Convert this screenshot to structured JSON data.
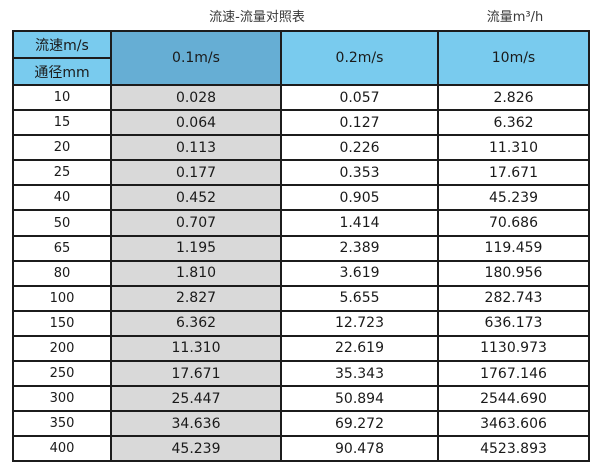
{
  "page": {
    "title_left": "流速-流量对照表",
    "title_right": "流量m³/h"
  },
  "table": {
    "header": {
      "velocity_label": "流速m/s",
      "diameter_label": "通径mm",
      "columns": [
        "0.1m/s",
        "0.2m/s",
        "10m/s"
      ]
    },
    "rows": [
      {
        "diameter": "10",
        "values": [
          "0.028",
          "0.057",
          "2.826"
        ]
      },
      {
        "diameter": "15",
        "values": [
          "0.064",
          "0.127",
          "6.362"
        ]
      },
      {
        "diameter": "20",
        "values": [
          "0.113",
          "0.226",
          "11.310"
        ]
      },
      {
        "diameter": "25",
        "values": [
          "0.177",
          "0.353",
          "17.671"
        ]
      },
      {
        "diameter": "40",
        "values": [
          "0.452",
          "0.905",
          "45.239"
        ]
      },
      {
        "diameter": "50",
        "values": [
          "0.707",
          "1.414",
          "70.686"
        ]
      },
      {
        "diameter": "65",
        "values": [
          "1.195",
          "2.389",
          "119.459"
        ]
      },
      {
        "diameter": "80",
        "values": [
          "1.810",
          "3.619",
          "180.956"
        ]
      },
      {
        "diameter": "100",
        "values": [
          "2.827",
          "5.655",
          "282.743"
        ]
      },
      {
        "diameter": "150",
        "values": [
          "6.362",
          "12.723",
          "636.173"
        ]
      },
      {
        "diameter": "200",
        "values": [
          "11.310",
          "22.619",
          "1130.973"
        ]
      },
      {
        "diameter": "250",
        "values": [
          "17.671",
          "35.343",
          "1767.146"
        ]
      },
      {
        "diameter": "300",
        "values": [
          "25.447",
          "50.894",
          "2544.690"
        ]
      },
      {
        "diameter": "350",
        "values": [
          "34.636",
          "69.272",
          "3463.606"
        ]
      },
      {
        "diameter": "400",
        "values": [
          "45.239",
          "90.478",
          "4523.893"
        ]
      }
    ]
  },
  "colors": {
    "header_blue": "#79cbee",
    "header_dark_blue": "#66aed4",
    "gray_column": "#d9d9d9",
    "border": "#1c1c1c",
    "text": "#1a1a1a"
  },
  "chart_data": {
    "type": "table",
    "title": "流速-流量对照表",
    "unit_label": "流量m³/h",
    "columns": [
      "通径mm",
      "0.1m/s",
      "0.2m/s",
      "10m/s"
    ],
    "rows": [
      [
        10,
        0.028,
        0.057,
        2.826
      ],
      [
        15,
        0.064,
        0.127,
        6.362
      ],
      [
        20,
        0.113,
        0.226,
        11.31
      ],
      [
        25,
        0.177,
        0.353,
        17.671
      ],
      [
        40,
        0.452,
        0.905,
        45.239
      ],
      [
        50,
        0.707,
        1.414,
        70.686
      ],
      [
        65,
        1.195,
        2.389,
        119.459
      ],
      [
        80,
        1.81,
        3.619,
        180.956
      ],
      [
        100,
        2.827,
        5.655,
        282.743
      ],
      [
        150,
        6.362,
        12.723,
        636.173
      ],
      [
        200,
        11.31,
        22.619,
        1130.973
      ],
      [
        250,
        17.671,
        35.343,
        1767.146
      ],
      [
        300,
        25.447,
        50.894,
        2544.69
      ],
      [
        350,
        34.636,
        69.272,
        3463.606
      ],
      [
        400,
        45.239,
        90.478,
        4523.893
      ]
    ]
  }
}
